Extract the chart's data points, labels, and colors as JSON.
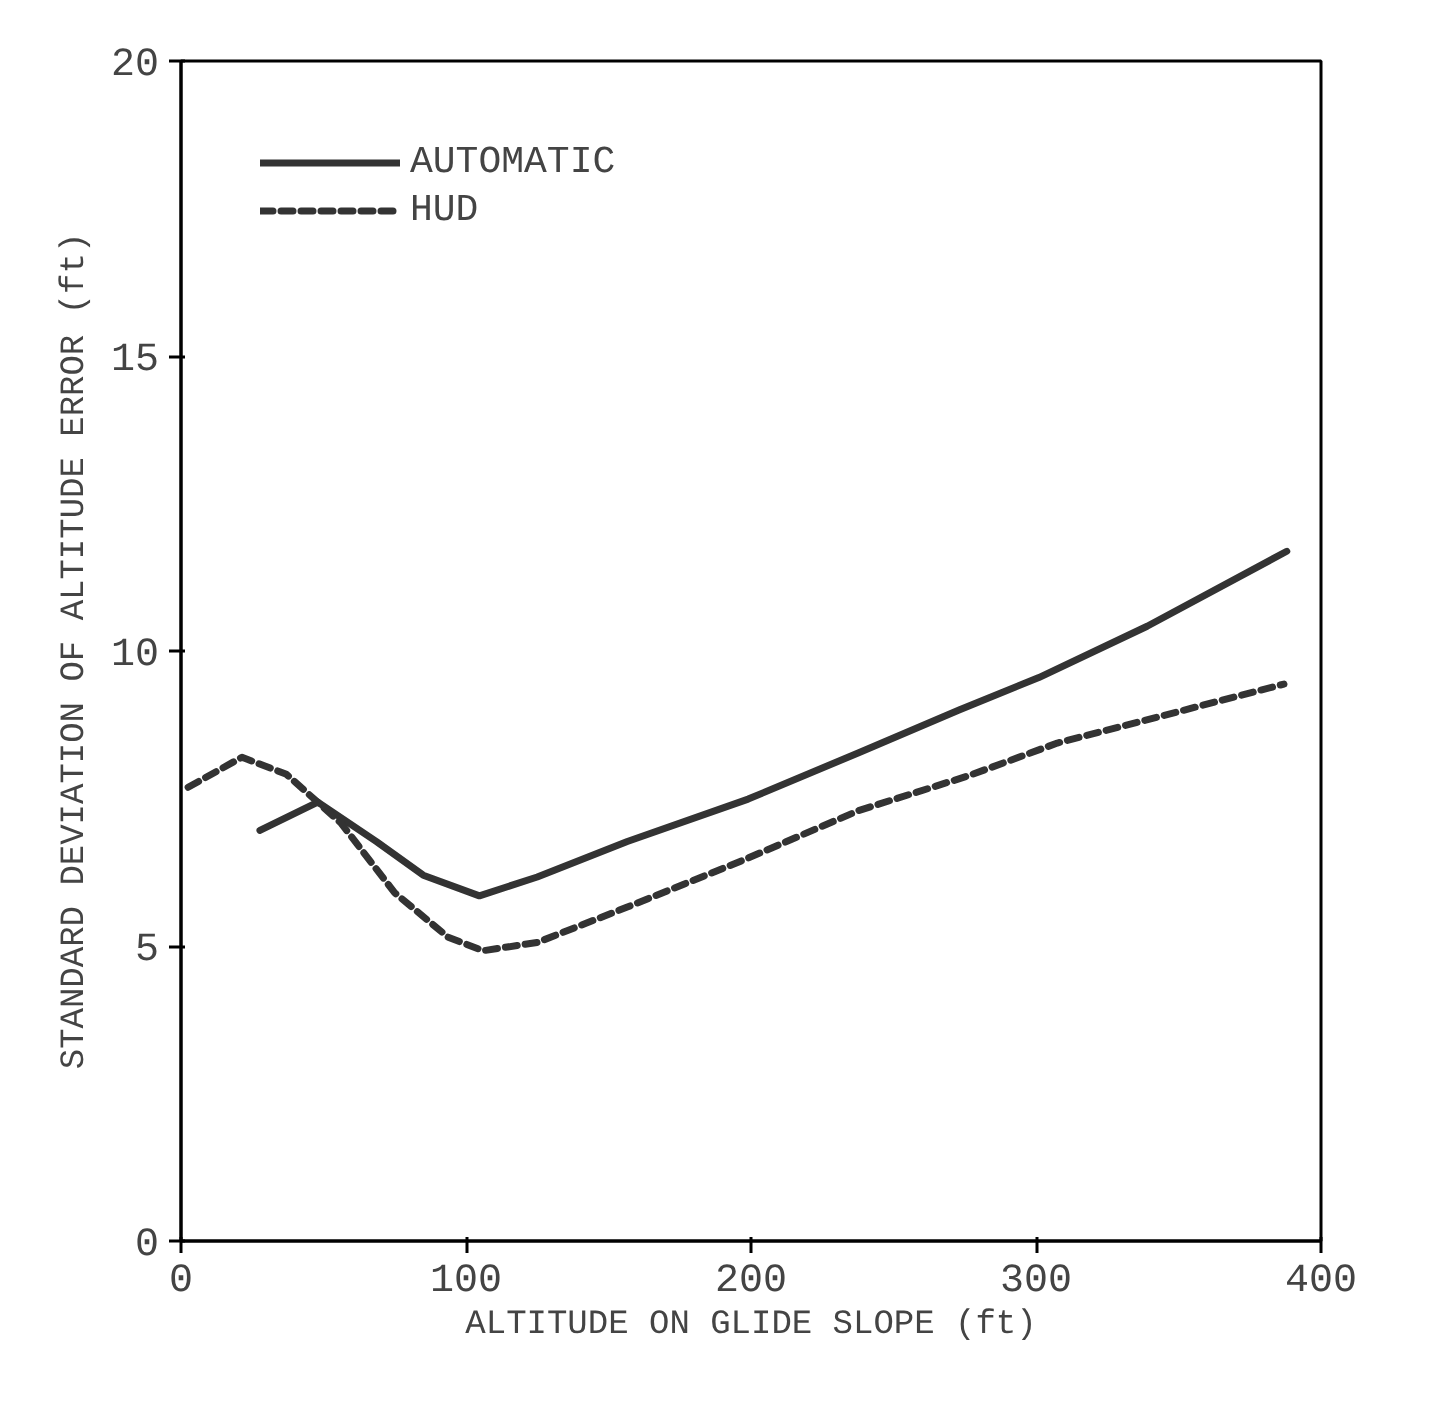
{
  "chart_data": {
    "type": "line",
    "xlabel": "ALTITUDE ON GLIDE SLOPE (ft)",
    "ylabel": "STANDARD DEVIATION OF ALTITUDE ERROR (ft)",
    "xlim": [
      0,
      400
    ],
    "ylim": [
      0,
      20
    ],
    "xticks": [
      0,
      100,
      200,
      300,
      400
    ],
    "yticks": [
      0,
      5,
      10,
      15,
      20
    ],
    "legend": "top left",
    "grid": false,
    "series": [
      {
        "name": "AUTOMATIC",
        "color": "#333333",
        "line_style": "solid",
        "x": [
          27.7,
          48,
          68.6,
          85,
          104.7,
          125,
          156.6,
          199,
          238,
          273,
          301,
          339,
          388
        ],
        "values": [
          6.96,
          7.44,
          6.77,
          6.2,
          5.85,
          6.17,
          6.77,
          7.49,
          8.28,
          9.0,
          9.55,
          10.42,
          11.69
        ]
      },
      {
        "name": "HUD",
        "color": "#333333",
        "line_style": "dashed",
        "x": [
          2.5,
          21.4,
          37,
          56,
          75,
          93.7,
          106,
          125,
          156.6,
          197.5,
          238,
          276,
          307.5,
          345,
          387
        ],
        "values": [
          7.69,
          8.2,
          7.91,
          7.09,
          5.9,
          5.15,
          4.92,
          5.06,
          5.66,
          6.46,
          7.3,
          7.88,
          8.44,
          8.91,
          9.44
        ]
      }
    ]
  }
}
